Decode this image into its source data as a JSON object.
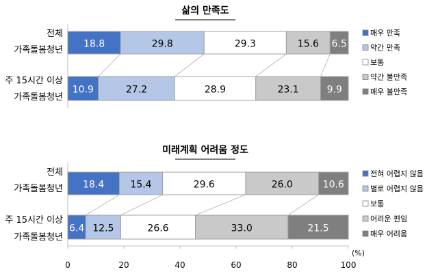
{
  "chart_data": [
    {
      "type": "bar",
      "orientation": "horizontal",
      "stacked": true,
      "title": "삶의 만족도",
      "categories": [
        [
          "전체",
          "가족돌봄청년"
        ],
        [
          "주 15시간 이상",
          "가족돌봄청년"
        ]
      ],
      "series": [
        {
          "name": "매우 만족",
          "values": [
            18.8,
            10.9
          ]
        },
        {
          "name": "약간 만족",
          "values": [
            29.8,
            27.2
          ]
        },
        {
          "name": "보통",
          "values": [
            29.3,
            28.9
          ]
        },
        {
          "name": "약간 불만족",
          "values": [
            15.6,
            23.1
          ]
        },
        {
          "name": "매우 불만족",
          "values": [
            6.5,
            9.9
          ]
        }
      ],
      "xlim": [
        0,
        100
      ],
      "legend": "right"
    },
    {
      "type": "bar",
      "orientation": "horizontal",
      "stacked": true,
      "title": "미래계획 어려움 정도",
      "categories": [
        [
          "전체",
          "가족돌봄청년"
        ],
        [
          "주 15시간 이상",
          "가족돌봄청년"
        ]
      ],
      "series": [
        {
          "name": "전혀 어렵지 않음",
          "values": [
            18.4,
            6.4
          ]
        },
        {
          "name": "별로 어렵지 않음",
          "values": [
            15.4,
            12.5
          ]
        },
        {
          "name": "보통",
          "values": [
            29.6,
            26.6
          ]
        },
        {
          "name": "어려운 편임",
          "values": [
            26.0,
            33.0
          ]
        },
        {
          "name": "매우 어려움",
          "values": [
            10.6,
            21.5
          ]
        }
      ],
      "xlim": [
        0,
        100
      ],
      "xticks": [
        "0",
        "20",
        "40",
        "60",
        "80",
        "100"
      ],
      "xunit": "(%)",
      "legend": "right"
    }
  ],
  "colors": {
    "fills": [
      "#4472c4",
      "#b4c7e7",
      "#ffffff",
      "#c9c9c9",
      "#7f7f7f"
    ],
    "labels": [
      "#ffffff",
      "#000000",
      "#000000",
      "#000000",
      "#ffffff"
    ],
    "stroke": "#a0a0a0"
  }
}
